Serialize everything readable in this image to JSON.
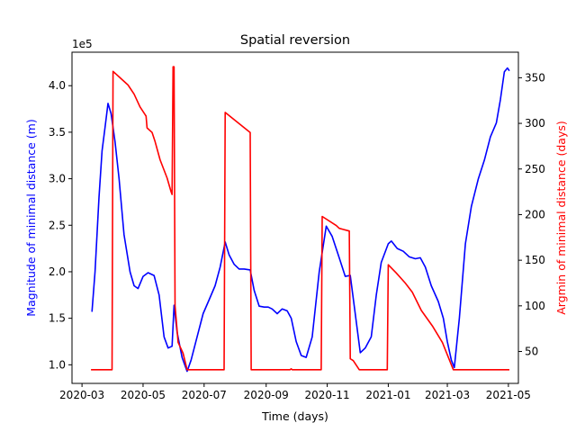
{
  "chart_data": {
    "type": "line",
    "title": "Spatial reversion",
    "xlabel": "Time (days)",
    "y_left_label": "Magnitude of minimal distance (m)",
    "y_right_label": "Argmin of minimal distance (days)",
    "y_left_offset_text": "1e5",
    "y_left_unit_scale": 100000,
    "xlim": [
      "2020-02-20",
      "2021-05-11"
    ],
    "ylim_left": [
      80000,
      436000
    ],
    "ylim_right": [
      15,
      378
    ],
    "x_ticks": [
      {
        "date": "2020-03-01",
        "label": "2020-03"
      },
      {
        "date": "2020-05-01",
        "label": "2020-05"
      },
      {
        "date": "2020-07-01",
        "label": "2020-07"
      },
      {
        "date": "2020-09-01",
        "label": "2020-09"
      },
      {
        "date": "2020-11-01",
        "label": "2020-11"
      },
      {
        "date": "2021-01-01",
        "label": "2021-01"
      },
      {
        "date": "2021-03-01",
        "label": "2021-03"
      },
      {
        "date": "2021-05-01",
        "label": "2021-05"
      }
    ],
    "y_left_ticks": [
      {
        "value": 100000,
        "label": "1.0"
      },
      {
        "value": 150000,
        "label": "1.5"
      },
      {
        "value": 200000,
        "label": "2.0"
      },
      {
        "value": 250000,
        "label": "2.5"
      },
      {
        "value": 300000,
        "label": "3.0"
      },
      {
        "value": 350000,
        "label": "3.5"
      },
      {
        "value": 400000,
        "label": "4.0"
      }
    ],
    "y_right_ticks": [
      {
        "value": 50,
        "label": "50"
      },
      {
        "value": 100,
        "label": "100"
      },
      {
        "value": 150,
        "label": "150"
      },
      {
        "value": 200,
        "label": "200"
      },
      {
        "value": 250,
        "label": "250"
      },
      {
        "value": 300,
        "label": "300"
      },
      {
        "value": 350,
        "label": "350"
      }
    ],
    "colors": {
      "left_series": "#0000ff",
      "right_series": "#ff0000",
      "axis": "#000000"
    },
    "series": [
      {
        "axis": "left",
        "color": "#0000ff",
        "points": [
          [
            "2020-03-11",
            157000
          ],
          [
            "2020-03-14",
            200000
          ],
          [
            "2020-03-18",
            280000
          ],
          [
            "2020-03-21",
            330000
          ],
          [
            "2020-03-24",
            355000
          ],
          [
            "2020-03-27",
            381000
          ],
          [
            "2020-03-30",
            370000
          ],
          [
            "2020-04-03",
            340000
          ],
          [
            "2020-04-07",
            300000
          ],
          [
            "2020-04-12",
            240000
          ],
          [
            "2020-04-18",
            200000
          ],
          [
            "2020-04-22",
            185000
          ],
          [
            "2020-04-26",
            182000
          ],
          [
            "2020-05-01",
            195000
          ],
          [
            "2020-05-06",
            199000
          ],
          [
            "2020-05-12",
            196000
          ],
          [
            "2020-05-17",
            175000
          ],
          [
            "2020-05-22",
            130000
          ],
          [
            "2020-05-26",
            118000
          ],
          [
            "2020-05-30",
            120000
          ],
          [
            "2020-06-01",
            164000
          ],
          [
            "2020-06-04",
            135000
          ],
          [
            "2020-06-09",
            108000
          ],
          [
            "2020-06-14",
            93000
          ],
          [
            "2020-06-18",
            105000
          ],
          [
            "2020-06-24",
            130000
          ],
          [
            "2020-06-30",
            155000
          ],
          [
            "2020-07-06",
            170000
          ],
          [
            "2020-07-12",
            185000
          ],
          [
            "2020-07-17",
            205000
          ],
          [
            "2020-07-22",
            232000
          ],
          [
            "2020-07-26",
            218000
          ],
          [
            "2020-07-31",
            208000
          ],
          [
            "2020-08-05",
            203000
          ],
          [
            "2020-08-10",
            203000
          ],
          [
            "2020-08-16",
            202000
          ],
          [
            "2020-08-20",
            180000
          ],
          [
            "2020-08-25",
            163000
          ],
          [
            "2020-08-30",
            162000
          ],
          [
            "2020-09-03",
            162000
          ],
          [
            "2020-09-07",
            160000
          ],
          [
            "2020-09-12",
            155000
          ],
          [
            "2020-09-17",
            160000
          ],
          [
            "2020-09-22",
            158000
          ],
          [
            "2020-09-26",
            150000
          ],
          [
            "2020-10-01",
            125000
          ],
          [
            "2020-10-06",
            110000
          ],
          [
            "2020-10-11",
            108000
          ],
          [
            "2020-10-17",
            130000
          ],
          [
            "2020-10-24",
            200000
          ],
          [
            "2020-10-31",
            249000
          ],
          [
            "2020-11-06",
            238000
          ],
          [
            "2020-11-13",
            215000
          ],
          [
            "2020-11-19",
            195000
          ],
          [
            "2020-11-24",
            196000
          ],
          [
            "2020-11-29",
            155000
          ],
          [
            "2020-12-04",
            113000
          ],
          [
            "2020-12-09",
            118000
          ],
          [
            "2020-12-15",
            130000
          ],
          [
            "2020-12-20",
            175000
          ],
          [
            "2020-12-25",
            210000
          ],
          [
            "2021-01-01",
            230000
          ],
          [
            "2021-01-04",
            233000
          ],
          [
            "2021-01-10",
            225000
          ],
          [
            "2021-01-16",
            222000
          ],
          [
            "2021-01-22",
            216000
          ],
          [
            "2021-01-28",
            214000
          ],
          [
            "2021-02-02",
            215000
          ],
          [
            "2021-02-07",
            205000
          ],
          [
            "2021-02-13",
            185000
          ],
          [
            "2021-02-20",
            168000
          ],
          [
            "2021-02-25",
            150000
          ],
          [
            "2021-03-01",
            125000
          ],
          [
            "2021-03-05",
            105000
          ],
          [
            "2021-03-08",
            97000
          ],
          [
            "2021-03-13",
            150000
          ],
          [
            "2021-03-19",
            230000
          ],
          [
            "2021-03-25",
            270000
          ],
          [
            "2021-04-01",
            300000
          ],
          [
            "2021-04-07",
            320000
          ],
          [
            "2021-04-13",
            345000
          ],
          [
            "2021-04-19",
            360000
          ],
          [
            "2021-04-23",
            385000
          ],
          [
            "2021-04-27",
            415000
          ],
          [
            "2021-04-30",
            419000
          ],
          [
            "2021-05-02",
            416000
          ]
        ]
      },
      {
        "axis": "right",
        "color": "#ff0000",
        "points": [
          [
            "2020-03-10",
            30
          ],
          [
            "2020-03-31",
            30
          ],
          [
            "2020-04-01",
            357
          ],
          [
            "2020-04-08",
            350
          ],
          [
            "2020-04-16",
            342
          ],
          [
            "2020-04-22",
            332
          ],
          [
            "2020-04-28",
            318
          ],
          [
            "2020-05-04",
            308
          ],
          [
            "2020-05-05",
            295
          ],
          [
            "2020-05-10",
            290
          ],
          [
            "2020-05-13",
            280
          ],
          [
            "2020-05-18",
            260
          ],
          [
            "2020-05-25",
            240
          ],
          [
            "2020-05-29",
            225
          ],
          [
            "2020-05-30",
            222
          ],
          [
            "2020-05-31",
            362
          ],
          [
            "2020-06-01",
            362
          ],
          [
            "2020-06-02",
            100
          ],
          [
            "2020-06-05",
            60
          ],
          [
            "2020-06-10",
            48
          ],
          [
            "2020-06-14",
            30
          ],
          [
            "2020-07-21",
            30
          ],
          [
            "2020-07-22",
            312
          ],
          [
            "2020-08-16",
            290
          ],
          [
            "2020-08-17",
            30
          ],
          [
            "2020-09-25",
            30
          ],
          [
            "2020-09-26",
            31
          ],
          [
            "2020-09-27",
            30
          ],
          [
            "2020-10-26",
            30
          ],
          [
            "2020-10-27",
            198
          ],
          [
            "2020-11-10",
            188
          ],
          [
            "2020-11-13",
            185
          ],
          [
            "2020-11-23",
            182
          ],
          [
            "2020-11-24",
            42
          ],
          [
            "2020-11-27",
            40
          ],
          [
            "2020-12-03",
            30
          ],
          [
            "2020-12-31",
            30
          ],
          [
            "2021-01-01",
            145
          ],
          [
            "2021-01-09",
            136
          ],
          [
            "2021-01-18",
            125
          ],
          [
            "2021-01-25",
            115
          ],
          [
            "2021-02-03",
            95
          ],
          [
            "2021-02-14",
            78
          ],
          [
            "2021-02-24",
            60
          ],
          [
            "2021-03-07",
            30
          ],
          [
            "2021-05-02",
            30
          ]
        ]
      }
    ]
  }
}
